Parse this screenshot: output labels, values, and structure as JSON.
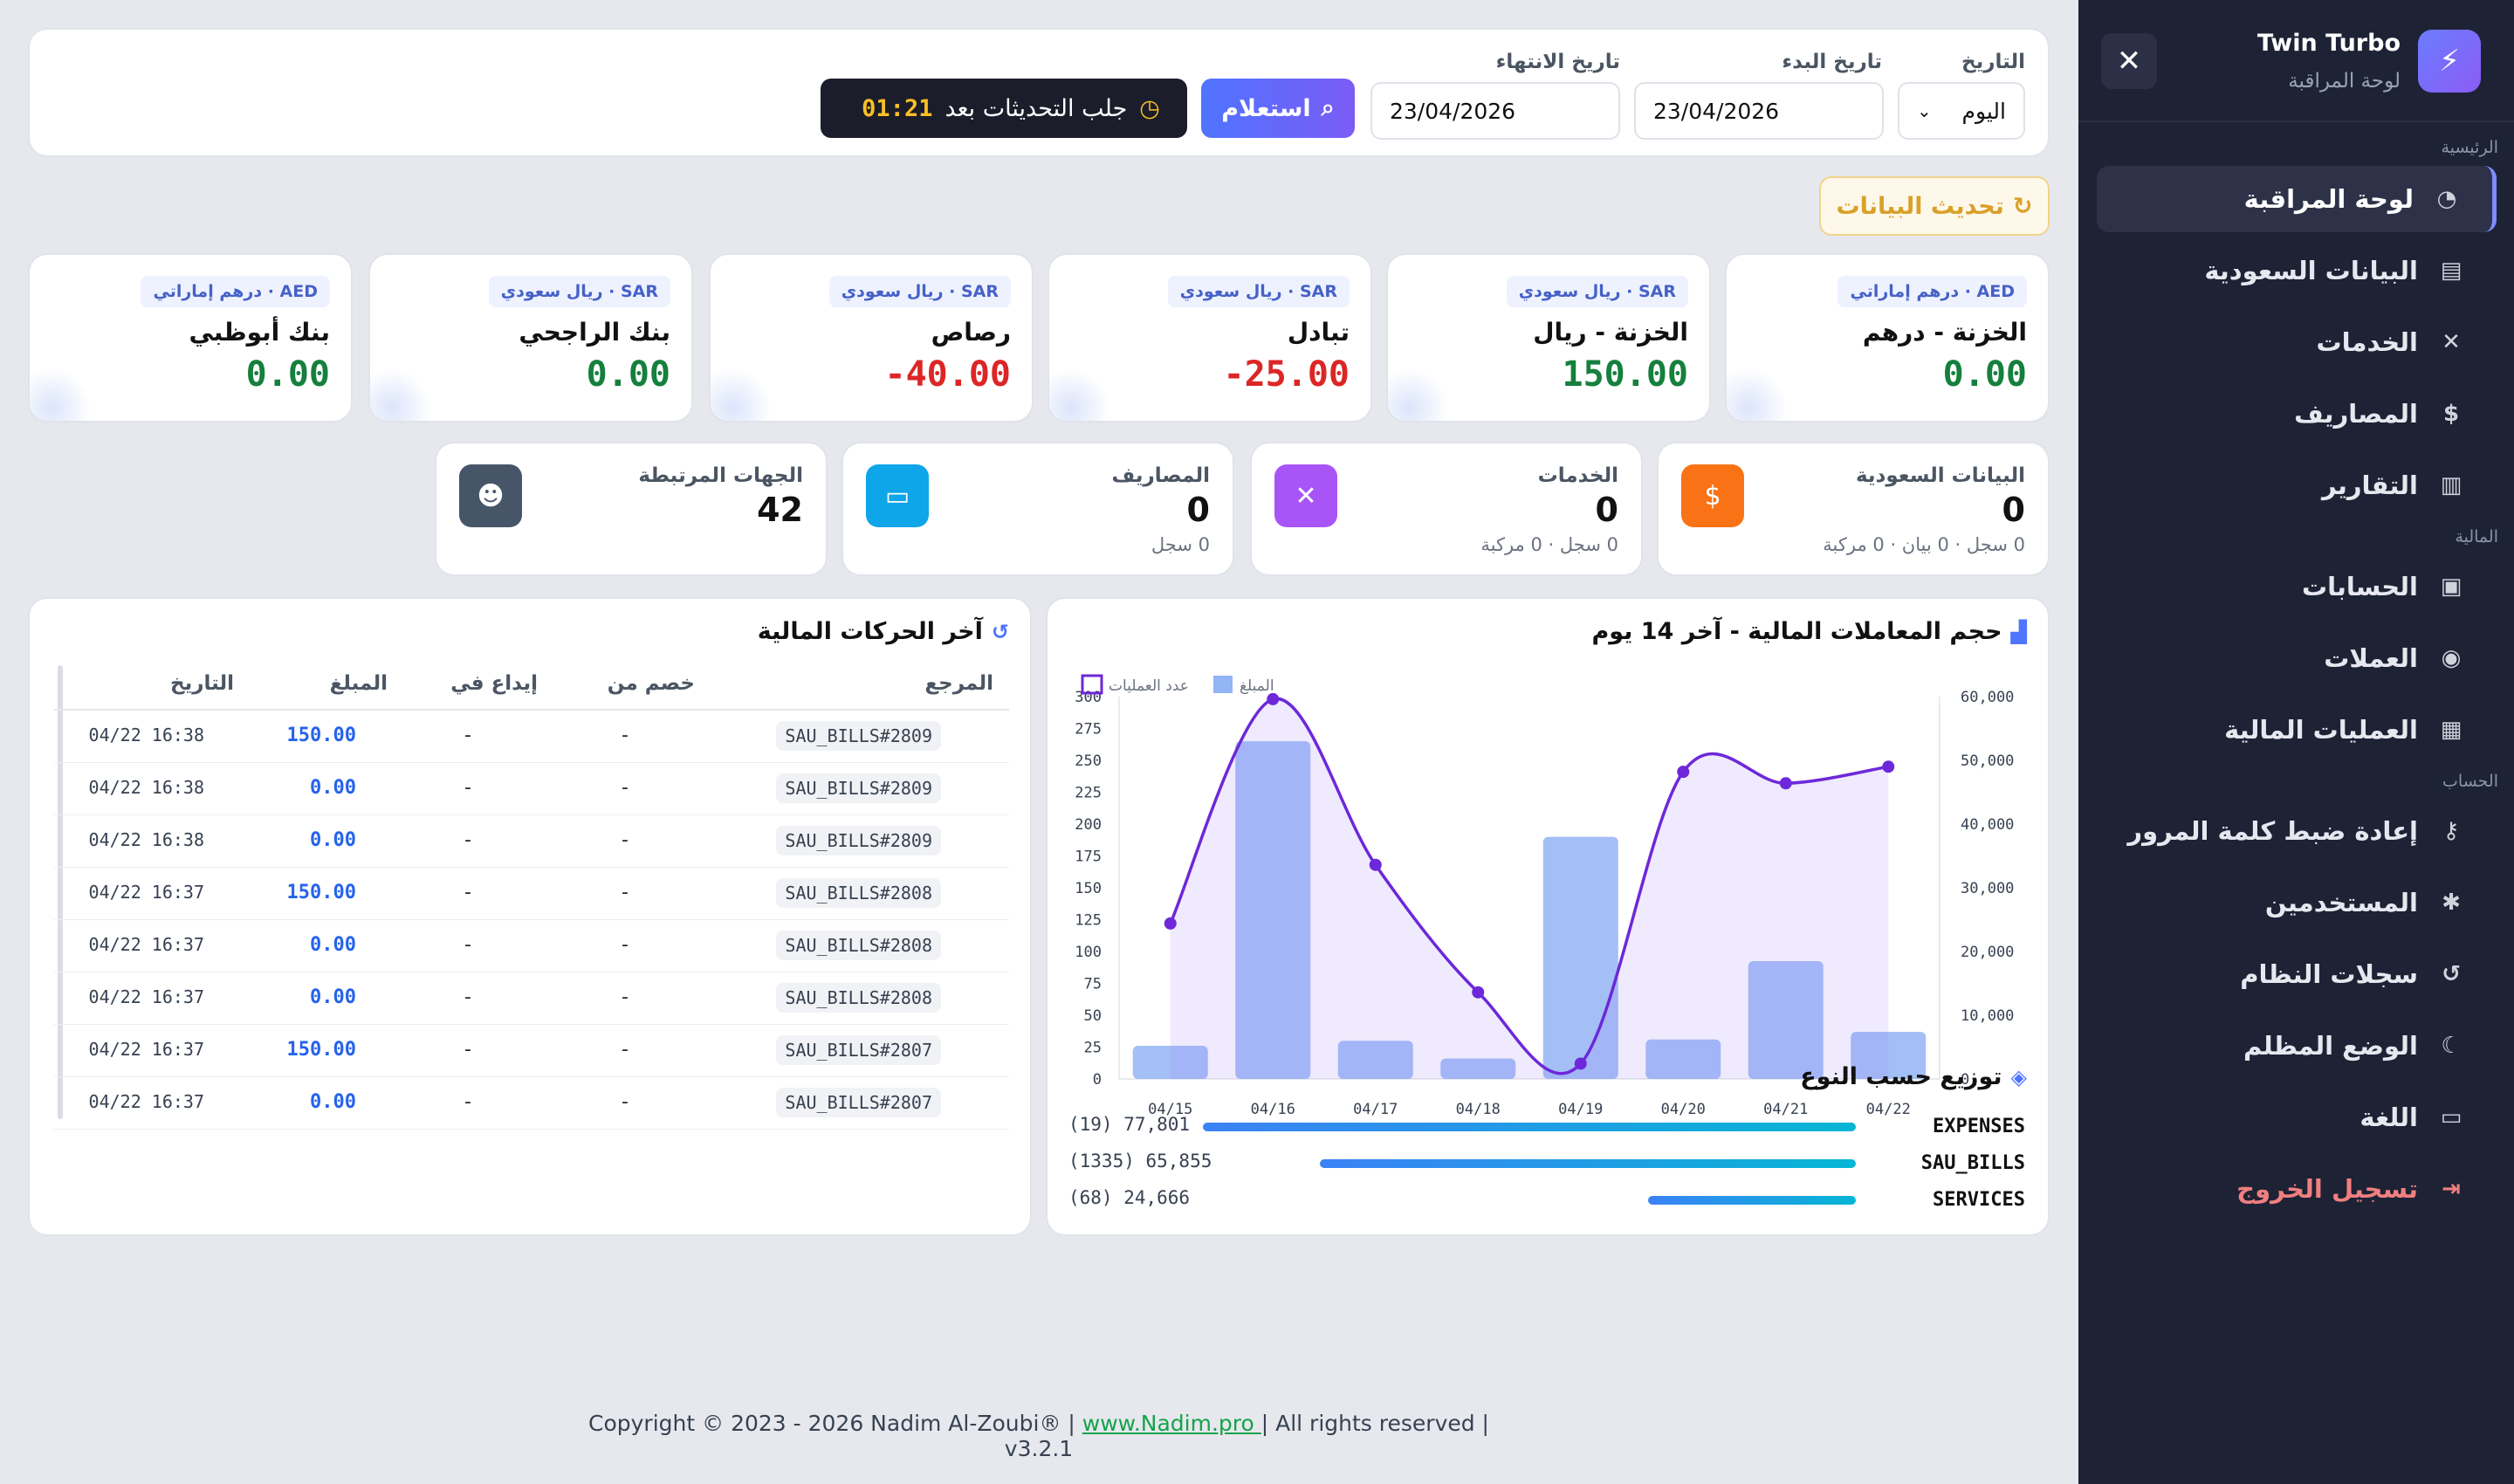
{
  "app": {
    "title": "Twin Turbo",
    "subtitle": "لوحة المراقبة"
  },
  "sidebar": {
    "sections": {
      "main": "الرئيسية",
      "finance": "المالية",
      "account": "الحساب"
    },
    "items": [
      {
        "label": "لوحة المراقبة",
        "icon": "dashboard-icon"
      },
      {
        "label": "البيانات السعودية",
        "icon": "document-icon"
      },
      {
        "label": "الخدمات",
        "icon": "tools-icon"
      },
      {
        "label": "المصاريف",
        "icon": "money-bag-icon"
      },
      {
        "label": "التقارير",
        "icon": "chart-icon"
      },
      {
        "label": "الحسابات",
        "icon": "wallet-icon"
      },
      {
        "label": "العملات",
        "icon": "coins-icon"
      },
      {
        "label": "العمليات المالية",
        "icon": "cash-icon"
      },
      {
        "label": "إعادة ضبط كلمة المرور",
        "icon": "key-icon"
      },
      {
        "label": "المستخدمين",
        "icon": "gear-icon"
      },
      {
        "label": "سجلات النظام",
        "icon": "history-icon"
      },
      {
        "label": "الوضع المظلم",
        "icon": "moon-icon"
      },
      {
        "label": "اللغة",
        "icon": "language-icon"
      },
      {
        "label": "تسجيل الخروج",
        "icon": "logout-icon"
      }
    ]
  },
  "filters": {
    "date_label": "التاريخ",
    "date_value": "اليوم",
    "start_label": "تاريخ البدء",
    "start_value": "23/04/2026",
    "end_label": "تاريخ الانتهاء",
    "end_value": "23/04/2026",
    "query_button": "استعلام",
    "fetch_label": "جلب التحديثات بعد",
    "fetch_timer": "01:21",
    "refresh_button": "تحديث البيانات"
  },
  "balances": [
    {
      "currency": "AED · درهم إماراتي",
      "name": "الخزنة - درهم",
      "value": "0.00",
      "color": "#15803d"
    },
    {
      "currency": "SAR · ريال سعودي",
      "name": "الخزنة - ريال",
      "value": "150.00",
      "color": "#15803d"
    },
    {
      "currency": "SAR · ريال سعودي",
      "name": "تبادل",
      "value": "-25.00",
      "color": "#dc2626"
    },
    {
      "currency": "SAR · ريال سعودي",
      "name": "رصاص",
      "value": "-40.00",
      "color": "#dc2626"
    },
    {
      "currency": "SAR · ريال سعودي",
      "name": "بنك الراجحي",
      "value": "0.00",
      "color": "#15803d"
    },
    {
      "currency": "AED · درهم إماراتي",
      "name": "بنك أبوظبي",
      "value": "0.00",
      "color": "#15803d"
    }
  ],
  "stats": [
    {
      "name": "البيانات السعودية",
      "value": "0",
      "sub": "0 سجل · 0 بيان · 0 مركبة",
      "icon": "document-dollar-icon",
      "color": "#f97316"
    },
    {
      "name": "الخدمات",
      "value": "0",
      "sub": "0 سجل · 0 مركبة",
      "icon": "tools-icon",
      "color": "#a855f7"
    },
    {
      "name": "المصاريف",
      "value": "0",
      "sub": "0 سجل",
      "icon": "wallet-icon",
      "color": "#0ea5e9"
    },
    {
      "name": "الجهات المرتبطة",
      "value": "42",
      "sub": "",
      "icon": "users-icon",
      "color": "#475569"
    }
  ],
  "chart_data": {
    "type": "bar",
    "title": "حجم المعاملات المالية - آخر 14 يوم",
    "categories": [
      "04/15",
      "04/16",
      "04/17",
      "04/18",
      "04/19",
      "04/20",
      "04/21",
      "04/22"
    ],
    "series": [
      {
        "name": "المبلغ",
        "type": "bar",
        "axis": "right",
        "values": [
          5200,
          53000,
          6000,
          3200,
          38000,
          6200,
          18500,
          7400
        ]
      },
      {
        "name": "عدد العمليات",
        "type": "line",
        "axis": "left",
        "values": [
          122,
          298,
          168,
          68,
          12,
          241,
          232,
          245
        ]
      }
    ],
    "y_left": {
      "min": 0,
      "max": 300,
      "ticks": [
        0,
        25,
        50,
        75,
        100,
        125,
        150,
        175,
        200,
        225,
        250,
        275,
        300
      ]
    },
    "y_right": {
      "min": 0,
      "max": 60000,
      "ticks": [
        "0",
        "10,000",
        "20,000",
        "30,000",
        "40,000",
        "50,000",
        "60,000"
      ]
    },
    "legend": "top-left",
    "grid": false
  },
  "distribution": {
    "title": "توزيع حسب النوع",
    "items": [
      {
        "label": "EXPENSES",
        "value": "(19) 77,801",
        "ratio": 1.0
      },
      {
        "label": "SAU_BILLS",
        "value": "(1335) 65,855",
        "ratio": 0.82
      },
      {
        "label": "SERVICES",
        "value": "(68) 24,666",
        "ratio": 0.32
      }
    ]
  },
  "transactions": {
    "title": "آخر الحركات المالية",
    "headers": {
      "ref": "المرجع",
      "debit": "خصم من",
      "credit": "إيداع في",
      "amount": "المبلغ",
      "date": "التاريخ"
    },
    "rows": [
      {
        "ref": "SAU_BILLS#2809",
        "debit": "-",
        "credit": "-",
        "amount": "150.00",
        "date": "04/22 16:38"
      },
      {
        "ref": "SAU_BILLS#2809",
        "debit": "-",
        "credit": "-",
        "amount": "0.00",
        "date": "04/22 16:38"
      },
      {
        "ref": "SAU_BILLS#2809",
        "debit": "-",
        "credit": "-",
        "amount": "0.00",
        "date": "04/22 16:38"
      },
      {
        "ref": "SAU_BILLS#2808",
        "debit": "-",
        "credit": "-",
        "amount": "150.00",
        "date": "04/22 16:37"
      },
      {
        "ref": "SAU_BILLS#2808",
        "debit": "-",
        "credit": "-",
        "amount": "0.00",
        "date": "04/22 16:37"
      },
      {
        "ref": "SAU_BILLS#2808",
        "debit": "-",
        "credit": "-",
        "amount": "0.00",
        "date": "04/22 16:37"
      },
      {
        "ref": "SAU_BILLS#2807",
        "debit": "-",
        "credit": "-",
        "amount": "150.00",
        "date": "04/22 16:37"
      },
      {
        "ref": "SAU_BILLS#2807",
        "debit": "-",
        "credit": "-",
        "amount": "0.00",
        "date": "04/22 16:37"
      }
    ]
  },
  "footer": {
    "prefix": "Copyright © 2023 - 2026 Nadim Al-Zoubi® | ",
    "link": "www.Nadim.pro ",
    "suffix": "| All rights reserved | v3.2.1"
  }
}
